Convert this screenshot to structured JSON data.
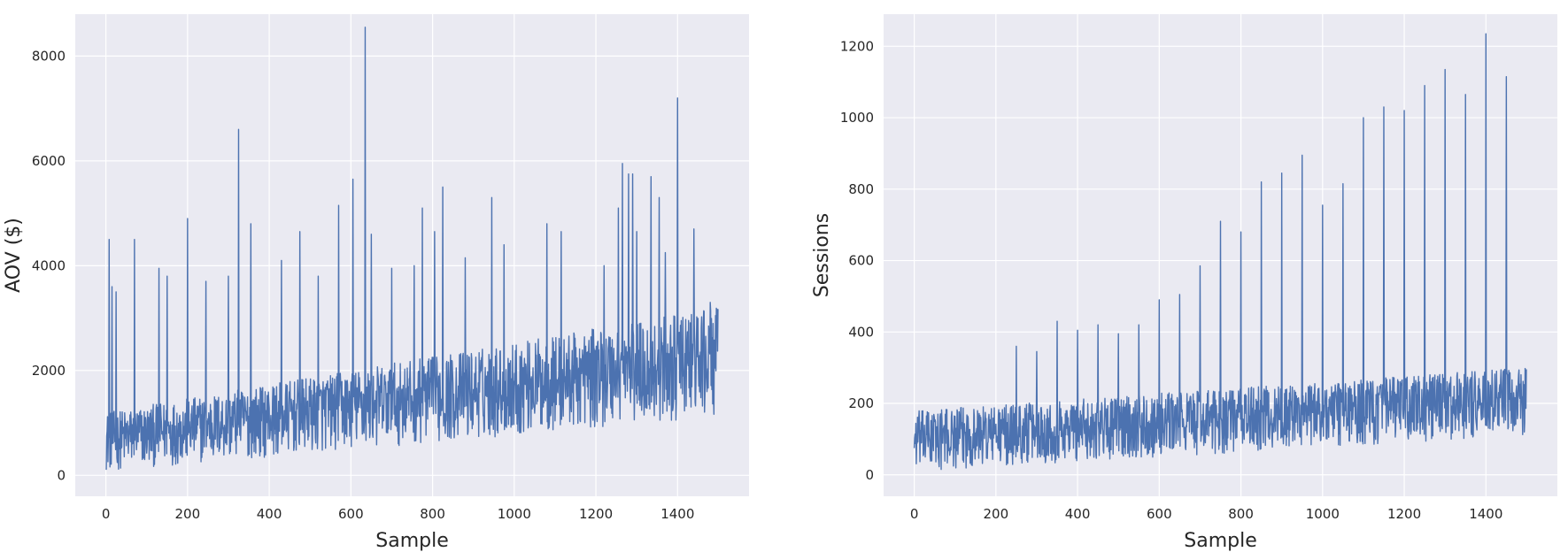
{
  "chart_data": [
    {
      "type": "line",
      "xlabel": "Sample",
      "ylabel": "AOV ($)",
      "xlim": [
        -75,
        1575
      ],
      "ylim": [
        -400,
        8800
      ],
      "x_ticks": [
        0,
        200,
        400,
        600,
        800,
        1000,
        1200,
        1400
      ],
      "y_ticks": [
        0,
        2000,
        4000,
        6000,
        8000
      ],
      "grid": true,
      "color": "#4c72b0",
      "n_points": 1500,
      "baseline": {
        "x": [
          0,
          1500
        ],
        "y": [
          80,
          1100
        ]
      },
      "band_top": {
        "x": [
          0,
          1500
        ],
        "y": [
          1200,
          3200
        ]
      },
      "spikes": [
        {
          "x": 8,
          "y": 4500
        },
        {
          "x": 15,
          "y": 3600
        },
        {
          "x": 25,
          "y": 3500
        },
        {
          "x": 70,
          "y": 4500
        },
        {
          "x": 130,
          "y": 3950
        },
        {
          "x": 150,
          "y": 3800
        },
        {
          "x": 200,
          "y": 4900
        },
        {
          "x": 245,
          "y": 3700
        },
        {
          "x": 300,
          "y": 3800
        },
        {
          "x": 325,
          "y": 6600
        },
        {
          "x": 355,
          "y": 4800
        },
        {
          "x": 430,
          "y": 4100
        },
        {
          "x": 475,
          "y": 4650
        },
        {
          "x": 520,
          "y": 3800
        },
        {
          "x": 570,
          "y": 5150
        },
        {
          "x": 605,
          "y": 5650
        },
        {
          "x": 635,
          "y": 8550
        },
        {
          "x": 650,
          "y": 4600
        },
        {
          "x": 700,
          "y": 3950
        },
        {
          "x": 755,
          "y": 4000
        },
        {
          "x": 775,
          "y": 5100
        },
        {
          "x": 805,
          "y": 4650
        },
        {
          "x": 825,
          "y": 5500
        },
        {
          "x": 880,
          "y": 4150
        },
        {
          "x": 945,
          "y": 5300
        },
        {
          "x": 975,
          "y": 4400
        },
        {
          "x": 1080,
          "y": 4800
        },
        {
          "x": 1115,
          "y": 4650
        },
        {
          "x": 1220,
          "y": 4000
        },
        {
          "x": 1255,
          "y": 5100
        },
        {
          "x": 1265,
          "y": 5950
        },
        {
          "x": 1280,
          "y": 5750
        },
        {
          "x": 1290,
          "y": 5750
        },
        {
          "x": 1300,
          "y": 4650
        },
        {
          "x": 1335,
          "y": 5700
        },
        {
          "x": 1355,
          "y": 5300
        },
        {
          "x": 1370,
          "y": 4250
        },
        {
          "x": 1400,
          "y": 7200
        },
        {
          "x": 1440,
          "y": 4700
        },
        {
          "x": 1480,
          "y": 3300
        }
      ]
    },
    {
      "type": "line",
      "xlabel": "Sample",
      "ylabel": "Sessions",
      "xlim": [
        -75,
        1575
      ],
      "ylim": [
        -60,
        1290
      ],
      "x_ticks": [
        0,
        200,
        400,
        600,
        800,
        1000,
        1200,
        1400
      ],
      "y_ticks": [
        0,
        200,
        400,
        600,
        800,
        1000,
        1200
      ],
      "grid": true,
      "color": "#4c72b0",
      "n_points": 1500,
      "baseline": {
        "x": [
          0,
          1500
        ],
        "y": [
          10,
          110
        ]
      },
      "band_top": {
        "x": [
          0,
          1500
        ],
        "y": [
          180,
          300
        ]
      },
      "spikes": [
        {
          "x": 250,
          "y": 360
        },
        {
          "x": 300,
          "y": 345
        },
        {
          "x": 350,
          "y": 430
        },
        {
          "x": 400,
          "y": 405
        },
        {
          "x": 450,
          "y": 420
        },
        {
          "x": 500,
          "y": 395
        },
        {
          "x": 550,
          "y": 420
        },
        {
          "x": 600,
          "y": 490
        },
        {
          "x": 650,
          "y": 505
        },
        {
          "x": 700,
          "y": 585
        },
        {
          "x": 750,
          "y": 710
        },
        {
          "x": 800,
          "y": 680
        },
        {
          "x": 850,
          "y": 820
        },
        {
          "x": 900,
          "y": 845
        },
        {
          "x": 950,
          "y": 895
        },
        {
          "x": 1000,
          "y": 755
        },
        {
          "x": 1050,
          "y": 815
        },
        {
          "x": 1100,
          "y": 1000
        },
        {
          "x": 1150,
          "y": 1030
        },
        {
          "x": 1200,
          "y": 1020
        },
        {
          "x": 1250,
          "y": 1090
        },
        {
          "x": 1300,
          "y": 1135
        },
        {
          "x": 1350,
          "y": 1065
        },
        {
          "x": 1400,
          "y": 1235
        },
        {
          "x": 1450,
          "y": 1115
        }
      ]
    }
  ]
}
